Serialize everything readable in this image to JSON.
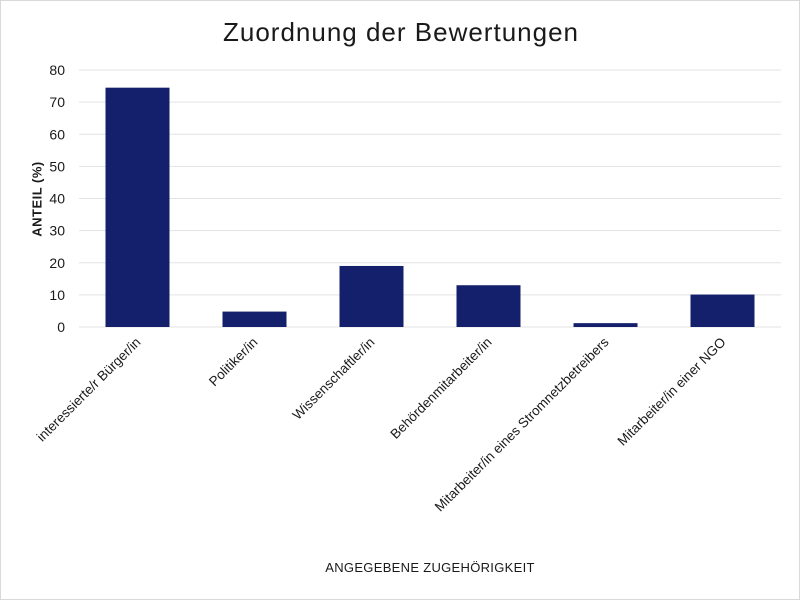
{
  "chart_data": {
    "type": "bar",
    "title": "Zuordnung der Bewertungen",
    "xlabel": "ANGEGEBENE ZUGEHÖRIGKEIT",
    "ylabel": "ANTEIL (%)",
    "ylim": [
      0,
      80
    ],
    "yticks": [
      0,
      10,
      20,
      30,
      40,
      50,
      60,
      70,
      80
    ],
    "grid": true,
    "categories": [
      "interessierte/r  Bürger/in",
      "Politiker/in",
      "Wissenschaftler/in",
      "Behördenmitarbeiter/in",
      "Mitarbeiter/in  eines Stromnetzbetreibers",
      "Mitarbeiter/in  einer NGO"
    ],
    "values": [
      74.5,
      4.8,
      19,
      13,
      1.2,
      10.1
    ],
    "bar_color": "#14206b",
    "grid_color": "#e3e3e3"
  }
}
